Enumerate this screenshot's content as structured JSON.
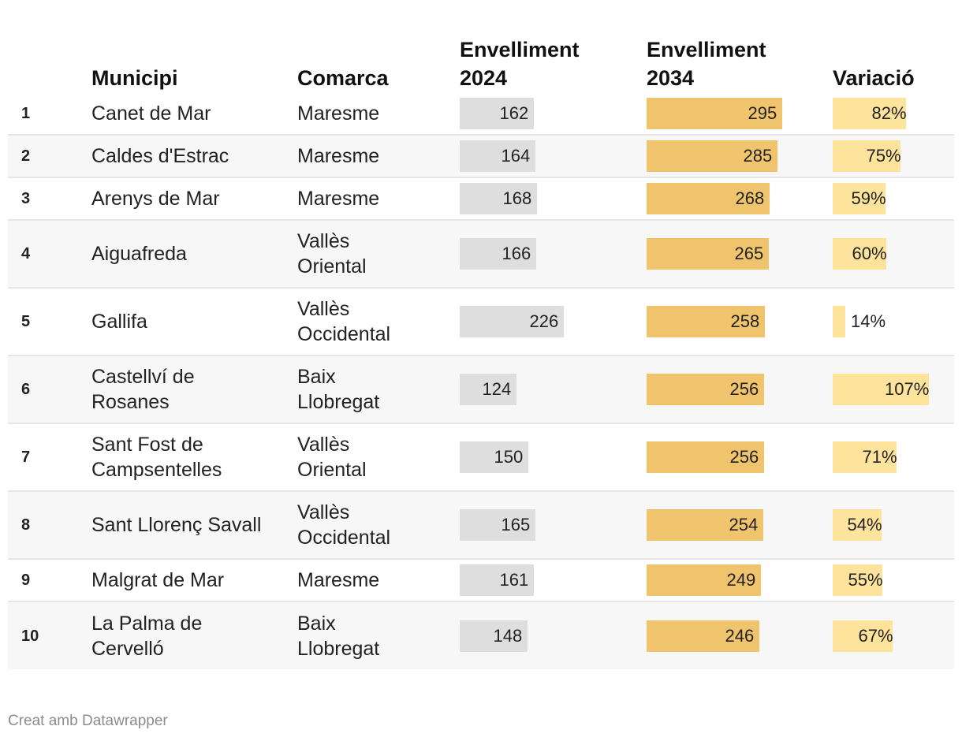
{
  "chart_data": {
    "type": "table",
    "columns": {
      "rank": "",
      "municipality": "Municipi",
      "county": "Comarca",
      "aging_2024": "Envelliment 2024",
      "aging_2034": "Envelliment 2034",
      "change": "Variació"
    },
    "rows": [
      {
        "rank": "1",
        "municipality": "Canet de Mar",
        "county": "Maresme",
        "aging_2024": 162,
        "aging_2034": 295,
        "change": 82,
        "change_label": "82%"
      },
      {
        "rank": "2",
        "municipality": "Caldes d'Estrac",
        "county": "Maresme",
        "aging_2024": 164,
        "aging_2034": 285,
        "change": 75,
        "change_label": "75%"
      },
      {
        "rank": "3",
        "municipality": "Arenys de Mar",
        "county": "Maresme",
        "aging_2024": 168,
        "aging_2034": 268,
        "change": 59,
        "change_label": "59%"
      },
      {
        "rank": "4",
        "municipality": "Aiguafreda",
        "county": "Vallès Oriental",
        "aging_2024": 166,
        "aging_2034": 265,
        "change": 60,
        "change_label": "60%"
      },
      {
        "rank": "5",
        "municipality": "Gallifa",
        "county": "Vallès Occidental",
        "aging_2024": 226,
        "aging_2034": 258,
        "change": 14,
        "change_label": "14%"
      },
      {
        "rank": "6",
        "municipality": "Castellví de Rosanes",
        "county": "Baix Llobregat",
        "aging_2024": 124,
        "aging_2034": 256,
        "change": 107,
        "change_label": "107%"
      },
      {
        "rank": "7",
        "municipality": "Sant Fost de Campsentelles",
        "county": "Vallès Oriental",
        "aging_2024": 150,
        "aging_2034": 256,
        "change": 71,
        "change_label": "71%"
      },
      {
        "rank": "8",
        "municipality": "Sant Llorenç Savall",
        "county": "Vallès Occidental",
        "aging_2024": 165,
        "aging_2034": 254,
        "change": 54,
        "change_label": "54%"
      },
      {
        "rank": "9",
        "municipality": "Malgrat de Mar",
        "county": "Maresme",
        "aging_2024": 161,
        "aging_2034": 249,
        "change": 55,
        "change_label": "55%"
      },
      {
        "rank": "10",
        "municipality": "La Palma de Cervelló",
        "county": "Baix Llobregat",
        "aging_2024": 148,
        "aging_2034": 246,
        "change": 67,
        "change_label": "67%"
      }
    ],
    "bar_colors": {
      "aging_2024": "#dedede",
      "aging_2034": "#f0c36d",
      "change": "#fde39b"
    }
  },
  "footer": {
    "credit": "Creat amb Datawrapper"
  }
}
